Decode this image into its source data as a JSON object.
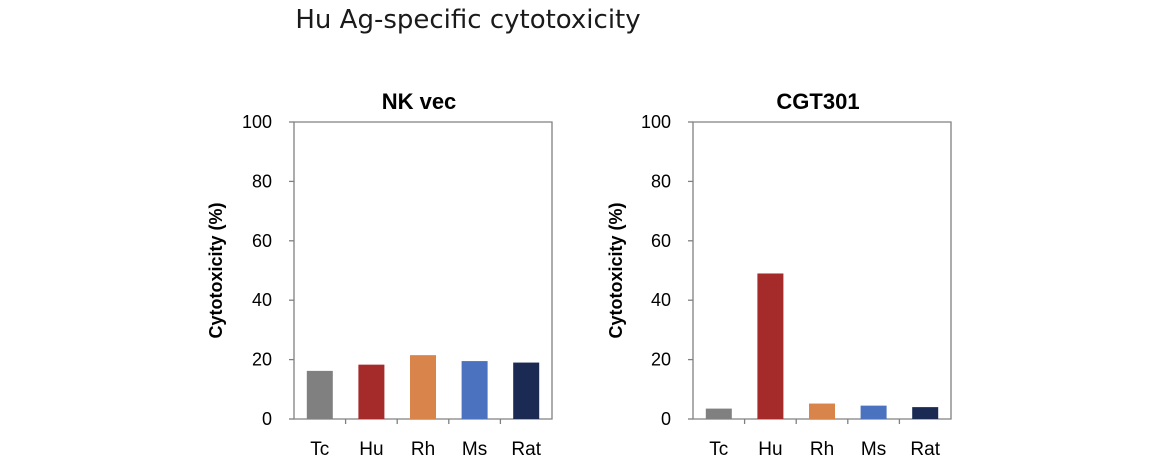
{
  "figure_title": "Hu Ag-specific cytotoxicity",
  "colors": {
    "Tc": "#808080",
    "Hu": "#A52A2A",
    "Rh": "#D9844A",
    "Ms": "#4A72BE",
    "Rat": "#1A2A52"
  },
  "chart_data": [
    {
      "type": "bar",
      "title": "NK vec",
      "ylabel": "Cytotoxicity (%)",
      "xlabel": "",
      "ylim": [
        0,
        100
      ],
      "yticks": [
        0,
        20,
        40,
        60,
        80,
        100
      ],
      "categories": [
        "Tc",
        "Hu",
        "Rh",
        "Ms",
        "Rat"
      ],
      "values": [
        16.2,
        18.3,
        21.5,
        19.5,
        19.0
      ]
    },
    {
      "type": "bar",
      "title": "CGT301",
      "ylabel": "Cytotoxicity (%)",
      "xlabel": "",
      "ylim": [
        0,
        100
      ],
      "yticks": [
        0,
        20,
        40,
        60,
        80,
        100
      ],
      "categories": [
        "Tc",
        "Hu",
        "Rh",
        "Ms",
        "Rat"
      ],
      "values": [
        3.5,
        49.0,
        5.2,
        4.5,
        4.0
      ]
    }
  ]
}
